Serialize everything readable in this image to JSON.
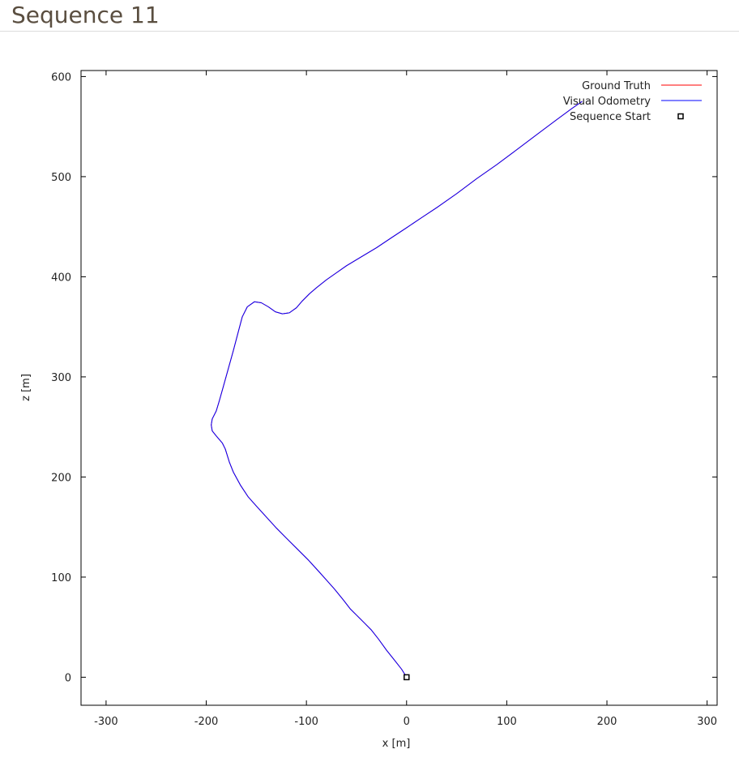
{
  "page": {
    "title": "Sequence 11"
  },
  "chart_data": {
    "type": "line",
    "title": "",
    "xlabel": "x [m]",
    "ylabel": "z [m]",
    "xlim": [
      -325,
      310
    ],
    "ylim": [
      -28,
      606
    ],
    "xticks": [
      -300,
      -200,
      -100,
      0,
      100,
      200,
      300
    ],
    "yticks": [
      0,
      100,
      200,
      300,
      400,
      500,
      600
    ],
    "grid": false,
    "legend_position": "top-right",
    "series": [
      {
        "name": "Ground Truth",
        "color": "#ff0000",
        "points": [
          [
            0,
            0
          ],
          [
            -5,
            8
          ],
          [
            -12,
            17
          ],
          [
            -20,
            27
          ],
          [
            -28,
            38
          ],
          [
            -35,
            47
          ],
          [
            -42,
            54
          ],
          [
            -50,
            62
          ],
          [
            -56,
            68
          ],
          [
            -63,
            77
          ],
          [
            -72,
            88
          ],
          [
            -80,
            97
          ],
          [
            -88,
            106
          ],
          [
            -98,
            117
          ],
          [
            -110,
            129
          ],
          [
            -120,
            139
          ],
          [
            -130,
            149
          ],
          [
            -140,
            160
          ],
          [
            -150,
            171
          ],
          [
            -158,
            180
          ],
          [
            -166,
            192
          ],
          [
            -173,
            205
          ],
          [
            -177,
            215
          ],
          [
            -181,
            228
          ],
          [
            -184,
            234
          ],
          [
            -190,
            241
          ],
          [
            -194,
            246
          ],
          [
            -195,
            252
          ],
          [
            -194,
            258
          ],
          [
            -190,
            266
          ],
          [
            -187,
            276
          ],
          [
            -183,
            290
          ],
          [
            -178,
            308
          ],
          [
            -173,
            326
          ],
          [
            -168,
            345
          ],
          [
            -164,
            360
          ],
          [
            -159,
            370
          ],
          [
            -152,
            375
          ],
          [
            -145,
            374
          ],
          [
            -138,
            370
          ],
          [
            -131,
            365
          ],
          [
            -124,
            363
          ],
          [
            -117,
            364
          ],
          [
            -110,
            369
          ],
          [
            -104,
            376
          ],
          [
            -97,
            383
          ],
          [
            -90,
            389
          ],
          [
            -80,
            397
          ],
          [
            -70,
            404
          ],
          [
            -60,
            411
          ],
          [
            -45,
            420
          ],
          [
            -30,
            429
          ],
          [
            -15,
            439
          ],
          [
            0,
            449
          ],
          [
            15,
            459
          ],
          [
            30,
            469
          ],
          [
            50,
            483
          ],
          [
            70,
            498
          ],
          [
            90,
            512
          ],
          [
            110,
            527
          ],
          [
            130,
            542
          ],
          [
            150,
            557
          ],
          [
            165,
            568
          ],
          [
            175,
            575
          ]
        ]
      },
      {
        "name": "Visual Odometry",
        "color": "#0000ff",
        "points": [
          [
            0,
            0
          ],
          [
            -5,
            8
          ],
          [
            -12,
            17
          ],
          [
            -20,
            27
          ],
          [
            -28,
            38
          ],
          [
            -35,
            47
          ],
          [
            -42,
            54
          ],
          [
            -50,
            62
          ],
          [
            -56,
            68
          ],
          [
            -63,
            77
          ],
          [
            -72,
            88
          ],
          [
            -80,
            97
          ],
          [
            -88,
            106
          ],
          [
            -98,
            117
          ],
          [
            -110,
            129
          ],
          [
            -120,
            139
          ],
          [
            -130,
            149
          ],
          [
            -140,
            160
          ],
          [
            -150,
            171
          ],
          [
            -158,
            180
          ],
          [
            -166,
            192
          ],
          [
            -173,
            205
          ],
          [
            -177,
            215
          ],
          [
            -181,
            228
          ],
          [
            -184,
            234
          ],
          [
            -190,
            241
          ],
          [
            -194,
            246
          ],
          [
            -195,
            252
          ],
          [
            -194,
            258
          ],
          [
            -190,
            266
          ],
          [
            -187,
            276
          ],
          [
            -183,
            290
          ],
          [
            -178,
            308
          ],
          [
            -173,
            326
          ],
          [
            -168,
            345
          ],
          [
            -164,
            360
          ],
          [
            -159,
            370
          ],
          [
            -152,
            375
          ],
          [
            -145,
            374
          ],
          [
            -138,
            370
          ],
          [
            -131,
            365
          ],
          [
            -124,
            363
          ],
          [
            -117,
            364
          ],
          [
            -110,
            369
          ],
          [
            -104,
            376
          ],
          [
            -97,
            383
          ],
          [
            -90,
            389
          ],
          [
            -80,
            397
          ],
          [
            -70,
            404
          ],
          [
            -60,
            411
          ],
          [
            -45,
            420
          ],
          [
            -30,
            429
          ],
          [
            -15,
            439
          ],
          [
            0,
            449
          ],
          [
            15,
            459
          ],
          [
            30,
            469
          ],
          [
            50,
            483
          ],
          [
            70,
            498
          ],
          [
            90,
            512
          ],
          [
            110,
            527
          ],
          [
            130,
            542
          ],
          [
            150,
            557
          ],
          [
            165,
            568
          ],
          [
            175,
            575
          ]
        ]
      }
    ],
    "markers": [
      {
        "name": "Sequence Start",
        "x": 0,
        "y": 0,
        "symbol": "square"
      }
    ]
  }
}
